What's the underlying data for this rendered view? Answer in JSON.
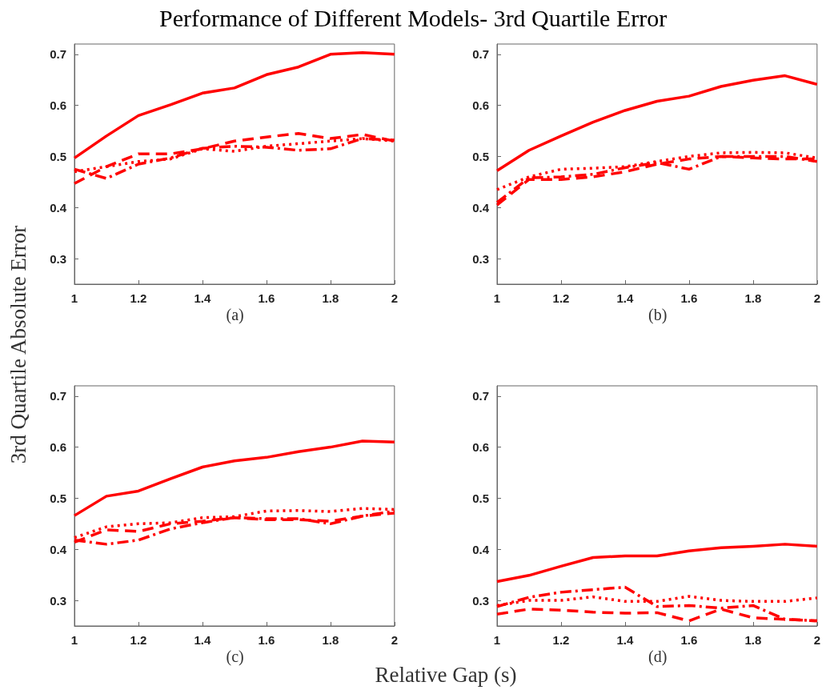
{
  "chart_data": [
    {
      "type": "line",
      "title": "Performance of Different Models- 3rd Quartile Error",
      "ylabel": "3rd Quartile Absolute Error",
      "annotations": [
        "(a)"
      ],
      "x": [
        1,
        1.1,
        1.2,
        1.3,
        1.4,
        1.5,
        1.6,
        1.7,
        1.8,
        1.9,
        2
      ],
      "xlim": [
        1,
        2
      ],
      "xticks": [
        1,
        1.2,
        1.4,
        1.6,
        1.8,
        2
      ],
      "ylim": [
        0.25,
        0.72
      ],
      "yticks": [
        0.3,
        0.4,
        0.5,
        0.6,
        0.7
      ],
      "series": [
        {
          "color": "#ff0000",
          "line_style": "solid",
          "values": [
            0.497,
            0.54,
            0.58,
            0.601,
            0.624,
            0.634,
            0.66,
            0.675,
            0.7,
            0.703,
            0.7
          ]
        },
        {
          "color": "#ff0000",
          "line_style": "dashed",
          "values": [
            0.447,
            0.48,
            0.505,
            0.505,
            0.515,
            0.53,
            0.538,
            0.545,
            0.535,
            0.543,
            0.53
          ]
        },
        {
          "color": "#ff0000",
          "line_style": "dotted",
          "values": [
            0.47,
            0.48,
            0.49,
            0.495,
            0.515,
            0.51,
            0.52,
            0.525,
            0.53,
            0.535,
            0.53
          ]
        },
        {
          "color": "#ff0000",
          "line_style": "dashdot",
          "values": [
            0.475,
            0.457,
            0.485,
            0.497,
            0.516,
            0.52,
            0.518,
            0.512,
            0.515,
            0.535,
            0.532
          ]
        }
      ]
    },
    {
      "type": "line",
      "annotations": [
        "(b)"
      ],
      "x": [
        1,
        1.1,
        1.2,
        1.3,
        1.4,
        1.5,
        1.6,
        1.7,
        1.8,
        1.9,
        2
      ],
      "xlim": [
        1,
        2
      ],
      "xticks": [
        1,
        1.2,
        1.4,
        1.6,
        1.8,
        2
      ],
      "ylim": [
        0.25,
        0.72
      ],
      "yticks": [
        0.3,
        0.4,
        0.5,
        0.6,
        0.7
      ],
      "series": [
        {
          "color": "#ff0000",
          "line_style": "solid",
          "values": [
            0.472,
            0.512,
            0.54,
            0.567,
            0.59,
            0.608,
            0.618,
            0.637,
            0.649,
            0.658,
            0.641
          ]
        },
        {
          "color": "#ff0000",
          "line_style": "dashed",
          "values": [
            0.405,
            0.455,
            0.455,
            0.46,
            0.47,
            0.485,
            0.495,
            0.5,
            0.497,
            0.495,
            0.495
          ]
        },
        {
          "color": "#ff0000",
          "line_style": "dotted",
          "values": [
            0.435,
            0.46,
            0.475,
            0.477,
            0.48,
            0.49,
            0.5,
            0.507,
            0.508,
            0.507,
            0.497
          ]
        },
        {
          "color": "#ff0000",
          "line_style": "dashdot",
          "values": [
            0.41,
            0.458,
            0.46,
            0.465,
            0.478,
            0.488,
            0.475,
            0.5,
            0.5,
            0.5,
            0.49
          ]
        }
      ]
    },
    {
      "type": "line",
      "xlabel": "Relative Gap (s)",
      "annotations": [
        "(c)"
      ],
      "x": [
        1,
        1.1,
        1.2,
        1.3,
        1.4,
        1.5,
        1.6,
        1.7,
        1.8,
        1.9,
        2
      ],
      "xlim": [
        1,
        2
      ],
      "xticks": [
        1,
        1.2,
        1.4,
        1.6,
        1.8,
        2
      ],
      "ylim": [
        0.25,
        0.72
      ],
      "yticks": [
        0.3,
        0.4,
        0.5,
        0.6,
        0.7
      ],
      "series": [
        {
          "color": "#ff0000",
          "line_style": "solid",
          "values": [
            0.466,
            0.504,
            0.514,
            0.538,
            0.561,
            0.573,
            0.58,
            0.591,
            0.6,
            0.612,
            0.61
          ]
        },
        {
          "color": "#ff0000",
          "line_style": "dashed",
          "values": [
            0.414,
            0.438,
            0.435,
            0.45,
            0.455,
            0.462,
            0.458,
            0.458,
            0.455,
            0.465,
            0.471
          ]
        },
        {
          "color": "#ff0000",
          "line_style": "dotted",
          "values": [
            0.423,
            0.444,
            0.45,
            0.452,
            0.462,
            0.464,
            0.475,
            0.476,
            0.474,
            0.48,
            0.478
          ]
        },
        {
          "color": "#ff0000",
          "line_style": "dashdot",
          "values": [
            0.418,
            0.41,
            0.418,
            0.44,
            0.452,
            0.462,
            0.46,
            0.46,
            0.45,
            0.465,
            0.475
          ]
        }
      ]
    },
    {
      "type": "line",
      "annotations": [
        "(d)"
      ],
      "x": [
        1,
        1.1,
        1.2,
        1.3,
        1.4,
        1.5,
        1.6,
        1.7,
        1.8,
        1.9,
        2
      ],
      "xlim": [
        1,
        2
      ],
      "xticks": [
        1,
        1.2,
        1.4,
        1.6,
        1.8,
        2
      ],
      "ylim": [
        0.25,
        0.72
      ],
      "yticks": [
        0.3,
        0.4,
        0.5,
        0.6,
        0.7
      ],
      "series": [
        {
          "color": "#ff0000",
          "line_style": "solid",
          "values": [
            0.337,
            0.349,
            0.367,
            0.384,
            0.387,
            0.387,
            0.397,
            0.403,
            0.406,
            0.41,
            0.406
          ]
        },
        {
          "color": "#ff0000",
          "line_style": "dashed",
          "values": [
            0.273,
            0.283,
            0.281,
            0.277,
            0.275,
            0.276,
            0.26,
            0.283,
            0.266,
            0.263,
            0.26
          ]
        },
        {
          "color": "#ff0000",
          "line_style": "dotted",
          "values": [
            0.29,
            0.3,
            0.3,
            0.307,
            0.298,
            0.298,
            0.308,
            0.3,
            0.298,
            0.298,
            0.305
          ]
        },
        {
          "color": "#ff0000",
          "line_style": "dashdot",
          "values": [
            0.288,
            0.306,
            0.316,
            0.321,
            0.326,
            0.288,
            0.29,
            0.285,
            0.29,
            0.263,
            0.26
          ]
        }
      ]
    }
  ]
}
